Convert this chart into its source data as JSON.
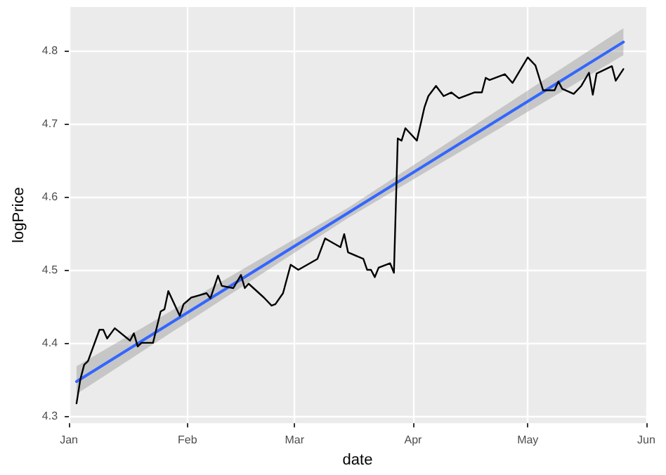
{
  "chart_data": {
    "type": "line",
    "xlabel": "date",
    "ylabel": "logPrice",
    "xlim": [
      "--01-01",
      "--06-01"
    ],
    "xticks": [
      {
        "value": "--01-01",
        "label": "Jan"
      },
      {
        "value": "--02-01",
        "label": "Feb"
      },
      {
        "value": "--03-01",
        "label": "Mar"
      },
      {
        "value": "--04-01",
        "label": "Apr"
      },
      {
        "value": "--05-01",
        "label": "May"
      },
      {
        "value": "--06-01",
        "label": "Jun"
      }
    ],
    "ylim": [
      4.29,
      4.86
    ],
    "yticks": [
      4.3,
      4.4,
      4.5,
      4.6,
      4.7,
      4.8
    ],
    "grid": true,
    "series": [
      {
        "color": "#000000",
        "x": [
          "--01-03",
          "--01-04",
          "--01-05",
          "--01-06",
          "--01-09",
          "--01-10",
          "--01-11",
          "--01-13",
          "--01-17",
          "--01-18",
          "--01-19",
          "--01-20",
          "--01-23",
          "--01-25",
          "--01-26",
          "--01-27",
          "--01-30",
          "--01-31",
          "--02-02",
          "--02-04",
          "--02-06",
          "--02-07",
          "--02-09",
          "--02-10",
          "--02-13",
          "--02-15",
          "--02-16",
          "--02-17",
          "--02-21",
          "--02-23",
          "--02-24",
          "--02-26",
          "--02-28",
          "--03-02",
          "--03-07",
          "--03-09",
          "--03-10",
          "--03-13",
          "--03-14",
          "--03-15",
          "--03-19",
          "--03-20",
          "--03-21",
          "--03-22",
          "--03-23",
          "--03-26",
          "--03-27",
          "--03-28",
          "--03-29",
          "--03-30",
          "--04-02",
          "--04-04",
          "--04-05",
          "--04-07",
          "--04-09",
          "--04-11",
          "--04-13",
          "--04-17",
          "--04-19",
          "--04-20",
          "--04-21",
          "--04-25",
          "--04-27",
          "--05-01",
          "--05-03",
          "--05-05",
          "--05-08",
          "--05-09",
          "--05-10",
          "--05-13",
          "--05-15",
          "--05-17",
          "--05-18",
          "--05-19",
          "--05-23",
          "--05-24",
          "--05-26"
        ],
        "values": [
          4.317,
          4.35,
          4.37,
          4.375,
          4.418,
          4.418,
          4.406,
          4.42,
          4.403,
          4.413,
          4.395,
          4.4,
          4.4,
          4.443,
          4.446,
          4.471,
          4.437,
          4.453,
          4.462,
          4.465,
          4.468,
          4.461,
          4.492,
          4.478,
          4.475,
          4.493,
          4.475,
          4.481,
          4.462,
          4.451,
          4.453,
          4.468,
          4.507,
          4.5,
          4.515,
          4.543,
          4.54,
          4.531,
          4.549,
          4.524,
          4.515,
          4.5,
          4.5,
          4.49,
          4.503,
          4.509,
          4.496,
          4.68,
          4.677,
          4.694,
          4.677,
          4.723,
          4.738,
          4.752,
          4.738,
          4.743,
          4.735,
          4.743,
          4.743,
          4.763,
          4.76,
          4.768,
          4.756,
          4.791,
          4.78,
          4.746,
          4.746,
          4.758,
          4.748,
          4.741,
          4.752,
          4.77,
          4.74,
          4.769,
          4.779,
          4.759,
          4.775
        ]
      },
      {
        "type": "line",
        "color": "#3366ff",
        "x": [
          "--01-03",
          "--03-15",
          "--05-26"
        ],
        "values": [
          4.347,
          4.578,
          4.812
        ],
        "lower": [
          4.33,
          4.571,
          4.794
        ],
        "upper": [
          4.368,
          4.585,
          4.831
        ]
      }
    ]
  }
}
